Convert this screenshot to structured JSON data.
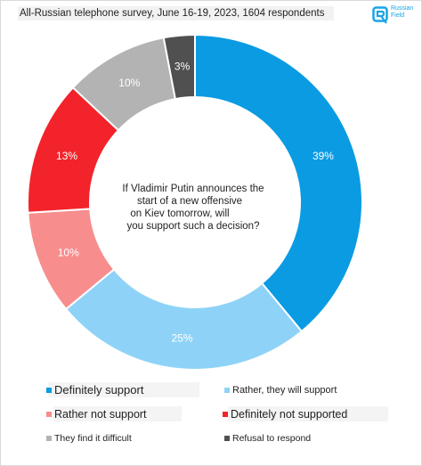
{
  "header": {
    "title": "All-Russian telephone survey, June 16-19, 2023, 1604 respondents",
    "logo_text": "Russian Field"
  },
  "chart_data": {
    "type": "pie",
    "question": "If Vladimir Putin announces the start of a new offensive on Kiev tomorrow, will you support such a decision?",
    "slices": [
      {
        "name": "Definitely support",
        "value": 39,
        "label": "39%",
        "color": "#0a9be3"
      },
      {
        "name": "Rather, they will support",
        "value": 25,
        "label": "25%",
        "color": "#8ed3f7"
      },
      {
        "name": "Rather not support",
        "value": 10,
        "label": "10%",
        "color": "#f78d8d"
      },
      {
        "name": "Definitely not supported",
        "value": 13,
        "label": "13%",
        "color": "#f2232a"
      },
      {
        "name": "They find it difficult",
        "value": 10,
        "label": "10%",
        "color": "#b3b3b3"
      },
      {
        "name": "Refusal to respond",
        "value": 3,
        "label": "3%",
        "color": "#505050"
      }
    ]
  }
}
